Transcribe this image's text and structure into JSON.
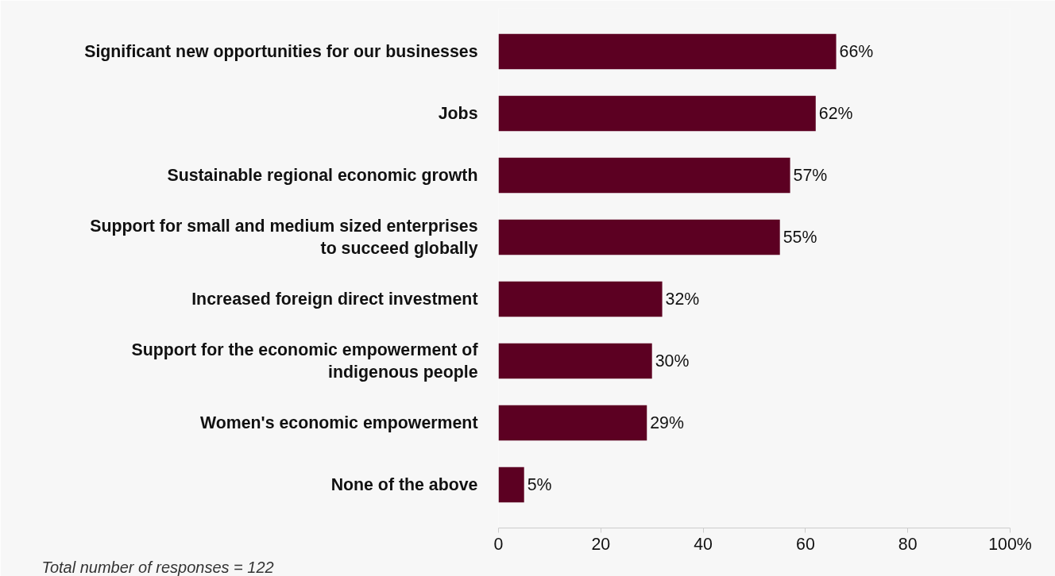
{
  "chart_data": {
    "type": "bar",
    "orientation": "horizontal",
    "categories": [
      "Significant new opportunities for our businesses",
      "Jobs",
      "Sustainable regional economic growth",
      "Support for small and medium sized enterprises\nto succeed globally",
      "Increased foreign direct investment",
      "Support for the economic empowerment of\nindigenous people",
      "Women's economic empowerment",
      "None of the above"
    ],
    "values": [
      66,
      62,
      57,
      55,
      32,
      30,
      29,
      5
    ],
    "value_labels": [
      "66%",
      "62%",
      "57%",
      "55%",
      "32%",
      "30%",
      "29%",
      "5%"
    ],
    "color": "#5c0022",
    "xlim": [
      0,
      100
    ],
    "xticks": [
      0,
      20,
      40,
      60,
      80,
      {
        "value": 100,
        "label": "100%"
      }
    ],
    "grid": false,
    "annotations": [
      "Total number of responses = 122"
    ]
  }
}
